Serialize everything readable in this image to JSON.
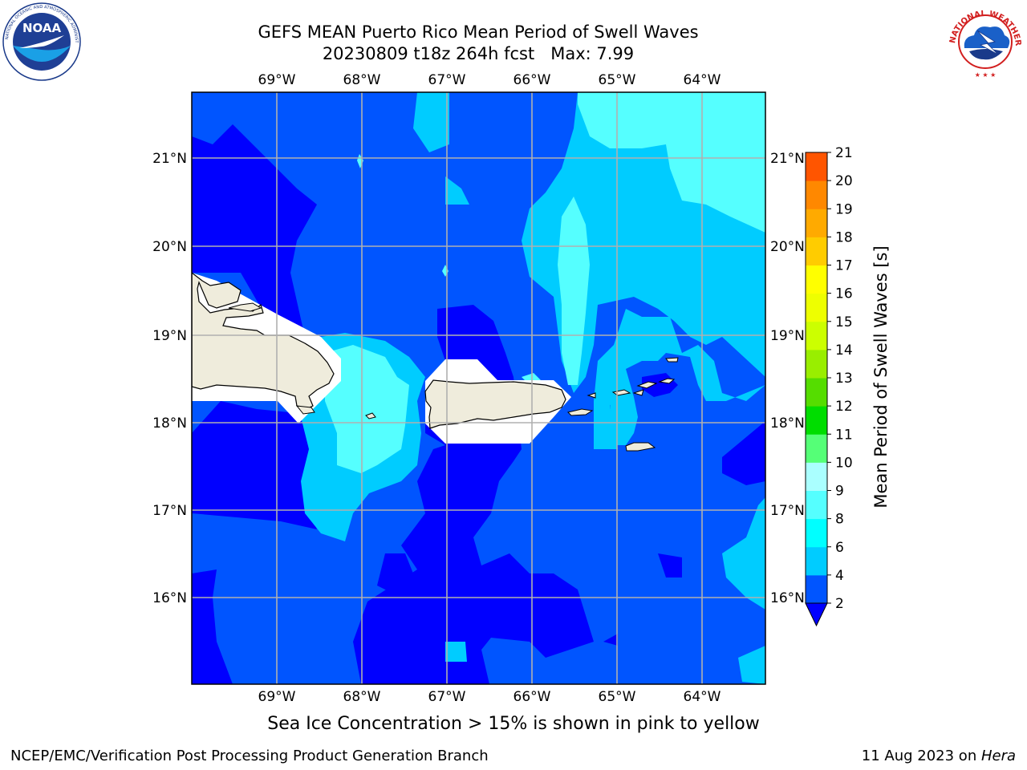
{
  "title": {
    "line1": "GEFS MEAN Puerto Rico Mean Period of Swell Waves",
    "line2": "20230809 t18z 264h fcst   Max: 7.99"
  },
  "map": {
    "lon_ticks": [
      "69°W",
      "68°W",
      "67°W",
      "66°W",
      "65°W",
      "64°W"
    ],
    "lat_ticks": [
      "21°N",
      "20°N",
      "19°N",
      "18°N",
      "17°N",
      "16°N"
    ],
    "extent": {
      "lon_min": -70.0,
      "lon_max": -63.25,
      "lat_min": 15.0,
      "lat_max": 21.75
    },
    "land_color": "#efecdc"
  },
  "colorbar": {
    "title": "Mean Period of Swell Waves [s]",
    "ticks": [
      "2",
      "4",
      "6",
      "8",
      "9",
      "10",
      "11",
      "12",
      "13",
      "14",
      "15",
      "16",
      "17",
      "18",
      "19",
      "20",
      "21"
    ],
    "colors": [
      "#0055ff",
      "#00ccff",
      "#00ffff",
      "#55ffff",
      "#aaffff",
      "#55ff77",
      "#00dd00",
      "#55dd00",
      "#99ee00",
      "#ccff00",
      "#eeff00",
      "#ffff00",
      "#ffcc00",
      "#ffaa00",
      "#ff8800",
      "#ff5500",
      "#ff2200",
      "#ff0000"
    ],
    "under_color": "#0000ff"
  },
  "chart_data": {
    "type": "heatmap",
    "title": "GEFS MEAN Puerto Rico Mean Period of Swell Waves",
    "subtitle": "20230809 t18z 264h fcst   Max: 7.99",
    "xlabel": "",
    "ylabel": "",
    "x_ticks": [
      "69°W",
      "68°W",
      "67°W",
      "66°W",
      "65°W",
      "64°W"
    ],
    "y_ticks": [
      "21°N",
      "20°N",
      "19°N",
      "18°N",
      "17°N",
      "16°N"
    ],
    "levels": [
      2,
      4,
      6,
      8,
      9,
      10,
      11,
      12,
      13,
      14,
      15,
      16,
      17,
      18,
      19,
      20,
      21
    ],
    "colorbar_label": "Mean Period of Swell Waves [s]",
    "max": 7.99,
    "grid": true
  },
  "footer": {
    "note": "Sea Ice Concentration > 15% is shown in pink to yellow",
    "credit": "NCEP/EMC/Verification Post Processing Product Generation Branch",
    "date_prefix": "11 Aug 2023 on ",
    "machine": "Hera"
  },
  "logos": {
    "noaa": {
      "text": "NOAA",
      "icon": "noaa-logo-icon"
    },
    "nws": {
      "text": "NATIONAL WEATHER SERVICE",
      "icon": "nws-logo-icon"
    }
  }
}
